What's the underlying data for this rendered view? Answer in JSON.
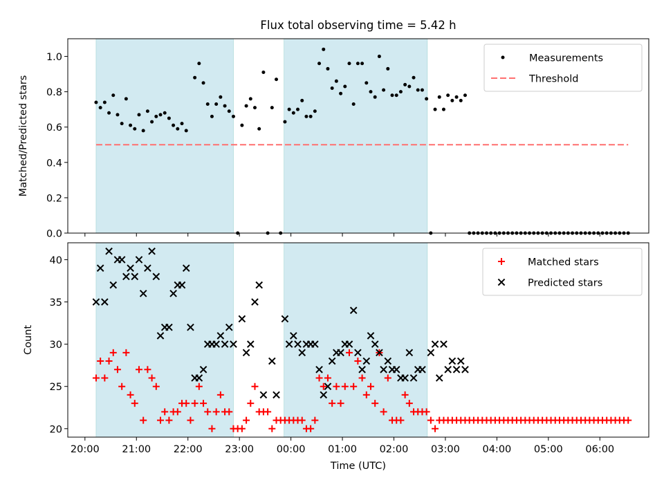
{
  "title": "Flux total observing time = 5.42 h",
  "colors": {
    "shade": "#add8e6",
    "threshold": "#ff6f6f",
    "matched": "#ff0000",
    "predicted": "#000000",
    "measurement": "#000000"
  },
  "chart_data": [
    {
      "type": "scatter",
      "ylabel": "Matched/Predicted stars",
      "ylim": [
        0,
        1.1
      ],
      "yticks": [
        "0.0",
        "0.2",
        "0.4",
        "0.6",
        "0.8",
        "1.0"
      ],
      "legend_position": "top-right",
      "shaded_intervals": [
        [
          "20:13",
          "22:53"
        ],
        [
          "23:52",
          "02:39"
        ]
      ],
      "threshold": {
        "name": "Threshold",
        "value": 0.5,
        "x_range": [
          "20:13",
          "06:33"
        ]
      },
      "series": [
        {
          "name": "Measurements",
          "points": [
            [
              "20:13",
              0.74
            ],
            [
              "20:18",
              0.71
            ],
            [
              "20:23",
              0.74
            ],
            [
              "20:28",
              0.68
            ],
            [
              "20:33",
              0.78
            ],
            [
              "20:38",
              0.67
            ],
            [
              "20:43",
              0.62
            ],
            [
              "20:48",
              0.76
            ],
            [
              "20:53",
              0.61
            ],
            [
              "20:58",
              0.59
            ],
            [
              "21:03",
              0.67
            ],
            [
              "21:08",
              0.58
            ],
            [
              "21:13",
              0.69
            ],
            [
              "21:18",
              0.63
            ],
            [
              "21:23",
              0.66
            ],
            [
              "21:28",
              0.67
            ],
            [
              "21:33",
              0.68
            ],
            [
              "21:38",
              0.65
            ],
            [
              "21:43",
              0.61
            ],
            [
              "21:48",
              0.59
            ],
            [
              "21:53",
              0.62
            ],
            [
              "21:58",
              0.58
            ],
            [
              "22:08",
              0.88
            ],
            [
              "22:13",
              0.96
            ],
            [
              "22:18",
              0.85
            ],
            [
              "22:23",
              0.73
            ],
            [
              "22:28",
              0.66
            ],
            [
              "22:33",
              0.73
            ],
            [
              "22:38",
              0.77
            ],
            [
              "22:43",
              0.72
            ],
            [
              "22:48",
              0.69
            ],
            [
              "22:53",
              0.66
            ],
            [
              "22:58",
              0.0
            ],
            [
              "23:03",
              0.61
            ],
            [
              "23:08",
              0.72
            ],
            [
              "23:13",
              0.76
            ],
            [
              "23:18",
              0.71
            ],
            [
              "23:23",
              0.59
            ],
            [
              "23:28",
              0.91
            ],
            [
              "23:33",
              0.0
            ],
            [
              "23:38",
              0.71
            ],
            [
              "23:43",
              0.87
            ],
            [
              "23:48",
              0.0
            ],
            [
              "23:53",
              0.63
            ],
            [
              "23:58",
              0.7
            ],
            [
              "00:03",
              0.68
            ],
            [
              "00:08",
              0.7
            ],
            [
              "00:13",
              0.75
            ],
            [
              "00:18",
              0.66
            ],
            [
              "00:23",
              0.66
            ],
            [
              "00:28",
              0.69
            ],
            [
              "00:33",
              0.96
            ],
            [
              "00:38",
              1.04
            ],
            [
              "00:43",
              0.93
            ],
            [
              "00:48",
              0.82
            ],
            [
              "00:53",
              0.86
            ],
            [
              "00:58",
              0.79
            ],
            [
              "01:03",
              0.83
            ],
            [
              "01:08",
              0.96
            ],
            [
              "01:13",
              0.73
            ],
            [
              "01:18",
              0.96
            ],
            [
              "01:23",
              0.96
            ],
            [
              "01:28",
              0.85
            ],
            [
              "01:33",
              0.8
            ],
            [
              "01:38",
              0.77
            ],
            [
              "01:43",
              1.0
            ],
            [
              "01:48",
              0.81
            ],
            [
              "01:53",
              0.93
            ],
            [
              "01:58",
              0.78
            ],
            [
              "02:03",
              0.78
            ],
            [
              "02:08",
              0.8
            ],
            [
              "02:13",
              0.84
            ],
            [
              "02:18",
              0.83
            ],
            [
              "02:23",
              0.88
            ],
            [
              "02:28",
              0.81
            ],
            [
              "02:33",
              0.81
            ],
            [
              "02:38",
              0.76
            ],
            [
              "02:43",
              0.0
            ],
            [
              "02:48",
              0.7
            ],
            [
              "02:53",
              0.77
            ],
            [
              "02:58",
              0.7
            ],
            [
              "03:03",
              0.78
            ],
            [
              "03:08",
              0.75
            ],
            [
              "03:13",
              0.77
            ],
            [
              "03:18",
              0.75
            ],
            [
              "03:23",
              0.78
            ]
          ],
          "zero_run": {
            "from": "03:28",
            "to": "06:33",
            "step_minutes": 5,
            "value": 0.0
          }
        }
      ]
    },
    {
      "type": "scatter",
      "xlabel": "Time (UTC)",
      "ylabel": "Count",
      "ylim": [
        19,
        42
      ],
      "yticks": [
        "20",
        "25",
        "30",
        "35",
        "40"
      ],
      "xticks": [
        "20:00",
        "21:00",
        "22:00",
        "23:00",
        "00:00",
        "01:00",
        "02:00",
        "03:00",
        "04:00",
        "05:00",
        "06:00"
      ],
      "legend_position": "top-right",
      "shaded_intervals": [
        [
          "20:13",
          "22:53"
        ],
        [
          "23:52",
          "02:39"
        ]
      ],
      "series": [
        {
          "name": "Matched stars",
          "marker": "+",
          "points": [
            [
              "20:13",
              26
            ],
            [
              "20:18",
              28
            ],
            [
              "20:23",
              26
            ],
            [
              "20:28",
              28
            ],
            [
              "20:33",
              29
            ],
            [
              "20:38",
              27
            ],
            [
              "20:43",
              25
            ],
            [
              "20:48",
              29
            ],
            [
              "20:53",
              24
            ],
            [
              "20:58",
              23
            ],
            [
              "21:03",
              27
            ],
            [
              "21:08",
              21
            ],
            [
              "21:13",
              27
            ],
            [
              "21:18",
              26
            ],
            [
              "21:23",
              25
            ],
            [
              "21:28",
              21
            ],
            [
              "21:33",
              22
            ],
            [
              "21:38",
              21
            ],
            [
              "21:43",
              22
            ],
            [
              "21:48",
              22
            ],
            [
              "21:53",
              23
            ],
            [
              "21:58",
              23
            ],
            [
              "22:03",
              21
            ],
            [
              "22:08",
              23
            ],
            [
              "22:13",
              25
            ],
            [
              "22:18",
              23
            ],
            [
              "22:23",
              22
            ],
            [
              "22:28",
              20
            ],
            [
              "22:33",
              22
            ],
            [
              "22:38",
              24
            ],
            [
              "22:43",
              22
            ],
            [
              "22:48",
              22
            ],
            [
              "22:53",
              20
            ],
            [
              "22:58",
              20
            ],
            [
              "23:03",
              20
            ],
            [
              "23:08",
              21
            ],
            [
              "23:13",
              23
            ],
            [
              "23:18",
              25
            ],
            [
              "23:23",
              22
            ],
            [
              "23:28",
              22
            ],
            [
              "23:33",
              22
            ],
            [
              "23:38",
              20
            ],
            [
              "23:43",
              21
            ],
            [
              "23:48",
              21
            ],
            [
              "23:53",
              21
            ],
            [
              "23:58",
              21
            ],
            [
              "00:03",
              21
            ],
            [
              "00:08",
              21
            ],
            [
              "00:13",
              21
            ],
            [
              "00:18",
              20
            ],
            [
              "00:23",
              20
            ],
            [
              "00:28",
              21
            ],
            [
              "00:33",
              26
            ],
            [
              "00:38",
              25
            ],
            [
              "00:43",
              26
            ],
            [
              "00:48",
              23
            ],
            [
              "00:53",
              25
            ],
            [
              "00:58",
              23
            ],
            [
              "01:03",
              25
            ],
            [
              "01:08",
              29
            ],
            [
              "01:13",
              25
            ],
            [
              "01:18",
              28
            ],
            [
              "01:23",
              26
            ],
            [
              "01:28",
              24
            ],
            [
              "01:33",
              25
            ],
            [
              "01:38",
              23
            ],
            [
              "01:43",
              29
            ],
            [
              "01:48",
              22
            ],
            [
              "01:53",
              26
            ],
            [
              "01:58",
              21
            ],
            [
              "02:03",
              21
            ],
            [
              "02:08",
              21
            ],
            [
              "02:13",
              24
            ],
            [
              "02:18",
              23
            ],
            [
              "02:23",
              22
            ],
            [
              "02:28",
              22
            ],
            [
              "02:33",
              22
            ],
            [
              "02:38",
              22
            ],
            [
              "02:43",
              21
            ],
            [
              "02:48",
              20
            ],
            [
              "02:53",
              21
            ],
            [
              "02:58",
              21
            ],
            [
              "03:03",
              21
            ],
            [
              "03:08",
              21
            ],
            [
              "03:13",
              21
            ],
            [
              "03:18",
              21
            ],
            [
              "03:23",
              21
            ]
          ],
          "constant_run": {
            "from": "03:28",
            "to": "06:33",
            "step_minutes": 5,
            "value": 21
          }
        },
        {
          "name": "Predicted stars",
          "marker": "x",
          "points": [
            [
              "20:13",
              35
            ],
            [
              "20:18",
              39
            ],
            [
              "20:23",
              35
            ],
            [
              "20:28",
              41
            ],
            [
              "20:33",
              37
            ],
            [
              "20:38",
              40
            ],
            [
              "20:43",
              40
            ],
            [
              "20:48",
              38
            ],
            [
              "20:53",
              39
            ],
            [
              "20:58",
              38
            ],
            [
              "21:03",
              40
            ],
            [
              "21:08",
              36
            ],
            [
              "21:13",
              39
            ],
            [
              "21:18",
              41
            ],
            [
              "21:23",
              38
            ],
            [
              "21:28",
              31
            ],
            [
              "21:33",
              32
            ],
            [
              "21:38",
              32
            ],
            [
              "21:43",
              36
            ],
            [
              "21:48",
              37
            ],
            [
              "21:53",
              37
            ],
            [
              "21:58",
              39
            ],
            [
              "22:03",
              32
            ],
            [
              "22:08",
              26
            ],
            [
              "22:13",
              26
            ],
            [
              "22:18",
              27
            ],
            [
              "22:23",
              30
            ],
            [
              "22:28",
              30
            ],
            [
              "22:33",
              30
            ],
            [
              "22:38",
              31
            ],
            [
              "22:43",
              30
            ],
            [
              "22:48",
              32
            ],
            [
              "22:53",
              30
            ],
            [
              "23:03",
              33
            ],
            [
              "23:08",
              29
            ],
            [
              "23:13",
              30
            ],
            [
              "23:18",
              35
            ],
            [
              "23:23",
              37
            ],
            [
              "23:28",
              24
            ],
            [
              "23:38",
              28
            ],
            [
              "23:43",
              24
            ],
            [
              "23:53",
              33
            ],
            [
              "23:58",
              30
            ],
            [
              "00:03",
              31
            ],
            [
              "00:08",
              30
            ],
            [
              "00:13",
              29
            ],
            [
              "00:18",
              30
            ],
            [
              "00:23",
              30
            ],
            [
              "00:28",
              30
            ],
            [
              "00:33",
              27
            ],
            [
              "00:38",
              24
            ],
            [
              "00:43",
              25
            ],
            [
              "00:48",
              28
            ],
            [
              "00:53",
              29
            ],
            [
              "00:58",
              29
            ],
            [
              "01:03",
              30
            ],
            [
              "01:08",
              30
            ],
            [
              "01:13",
              34
            ],
            [
              "01:18",
              29
            ],
            [
              "01:23",
              27
            ],
            [
              "01:28",
              28
            ],
            [
              "01:33",
              31
            ],
            [
              "01:38",
              30
            ],
            [
              "01:43",
              29
            ],
            [
              "01:48",
              27
            ],
            [
              "01:53",
              28
            ],
            [
              "01:58",
              27
            ],
            [
              "02:03",
              27
            ],
            [
              "02:08",
              26
            ],
            [
              "02:13",
              26
            ],
            [
              "02:18",
              29
            ],
            [
              "02:23",
              26
            ],
            [
              "02:28",
              27
            ],
            [
              "02:33",
              27
            ],
            [
              "02:43",
              29
            ],
            [
              "02:48",
              30
            ],
            [
              "02:53",
              26
            ],
            [
              "02:58",
              30
            ],
            [
              "03:03",
              27
            ],
            [
              "03:08",
              28
            ],
            [
              "03:13",
              27
            ],
            [
              "03:18",
              28
            ],
            [
              "03:23",
              27
            ]
          ]
        }
      ]
    }
  ]
}
